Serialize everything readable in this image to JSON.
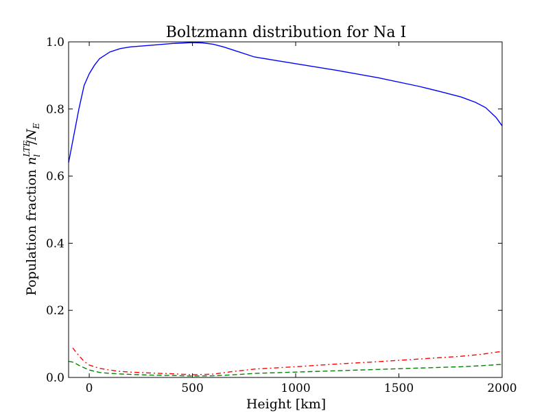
{
  "chart_data": {
    "type": "line",
    "title": "Boltzmann distribution for Na I",
    "xlabel": "Height [km]",
    "ylabel": {
      "main": "Population fraction",
      "sup": "LTE",
      "sub": "l",
      "denom": "N",
      "denom_sub": "E"
    },
    "xlim": [
      -100,
      2000
    ],
    "ylim": [
      0.0,
      1.0
    ],
    "xticks": [
      0,
      500,
      1000,
      1500,
      2000
    ],
    "xtick_labels": [
      "0",
      "500",
      "1000",
      "1500",
      "2000"
    ],
    "yticks": [
      0.0,
      0.2,
      0.4,
      0.6,
      0.8,
      1.0
    ],
    "ytick_labels": [
      "0.0",
      "0.2",
      "0.4",
      "0.6",
      "0.8",
      "1.0"
    ],
    "grid": false,
    "series": [
      {
        "color": "#0000ff",
        "style": "solid",
        "x": [
          -100,
          -75,
          -50,
          -25,
          0,
          25,
          50,
          100,
          150,
          200,
          300,
          400,
          500,
          550,
          600,
          650,
          700,
          800,
          900,
          1000,
          1200,
          1400,
          1600,
          1700,
          1800,
          1870,
          1920,
          1970,
          2000
        ],
        "y": [
          0.64,
          0.72,
          0.8,
          0.87,
          0.905,
          0.93,
          0.95,
          0.97,
          0.98,
          0.985,
          0.99,
          0.995,
          0.998,
          0.997,
          0.993,
          0.985,
          0.975,
          0.955,
          0.945,
          0.935,
          0.915,
          0.893,
          0.867,
          0.852,
          0.836,
          0.82,
          0.804,
          0.775,
          0.75
        ]
      },
      {
        "color": "#ff0000",
        "style": "dashdot",
        "x": [
          -80,
          -50,
          -25,
          0,
          50,
          100,
          150,
          200,
          300,
          400,
          500,
          600,
          700,
          800,
          1000,
          1200,
          1400,
          1600,
          1800,
          1900,
          2000
        ],
        "y": [
          0.088,
          0.065,
          0.048,
          0.037,
          0.027,
          0.022,
          0.018,
          0.016,
          0.013,
          0.011,
          0.008,
          0.01,
          0.018,
          0.025,
          0.032,
          0.04,
          0.047,
          0.055,
          0.063,
          0.069,
          0.078
        ]
      },
      {
        "color": "#008000",
        "style": "dashed",
        "x": [
          -100,
          -75,
          -50,
          0,
          50,
          100,
          200,
          300,
          400,
          500,
          600,
          700,
          800,
          1000,
          1200,
          1400,
          1600,
          1800,
          1900,
          2000
        ],
        "y": [
          0.048,
          0.045,
          0.036,
          0.022,
          0.015,
          0.012,
          0.009,
          0.007,
          0.006,
          0.004,
          0.005,
          0.008,
          0.012,
          0.016,
          0.02,
          0.024,
          0.028,
          0.032,
          0.035,
          0.039
        ]
      }
    ]
  }
}
